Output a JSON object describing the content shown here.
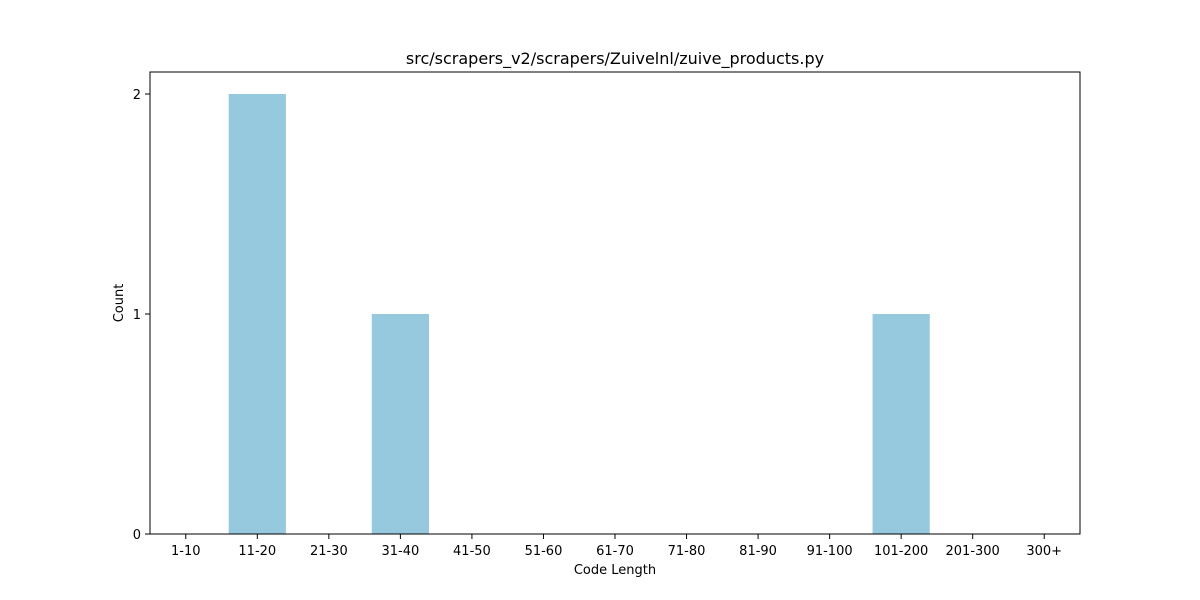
{
  "chart_data": {
    "type": "bar",
    "title": "src/scrapers_v2/scrapers/Zuivelnl/zuive_products.py",
    "xlabel": "Code Length",
    "ylabel": "Count",
    "categories": [
      "1-10",
      "11-20",
      "21-30",
      "31-40",
      "41-50",
      "51-60",
      "61-70",
      "71-80",
      "81-90",
      "91-100",
      "101-200",
      "201-300",
      "300+"
    ],
    "values": [
      0,
      2,
      0,
      1,
      0,
      0,
      0,
      0,
      0,
      0,
      1,
      0,
      0
    ],
    "ylim": [
      0,
      2.1
    ],
    "yticks": [
      "0",
      "1",
      "2"
    ],
    "grid": false,
    "bar_color": "#96c9de"
  }
}
